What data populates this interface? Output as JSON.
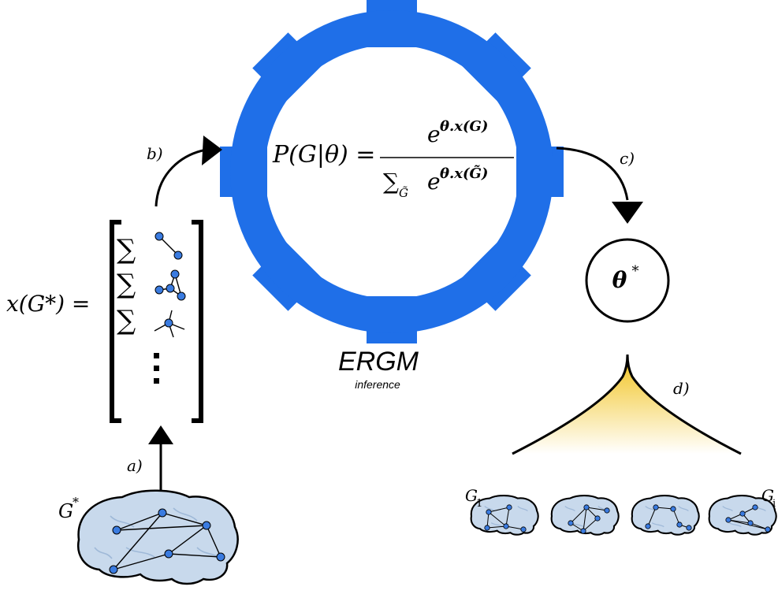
{
  "colors": {
    "gear": "#1f6fe8",
    "node": "#3a7be0",
    "brain_fill": "#c8d9ec",
    "brain_sulci": "#9fb9d8",
    "fan_top": "#f1c21b",
    "ink": "#000000"
  },
  "labels": {
    "step_a": "a)",
    "step_b": "b)",
    "step_c": "c)",
    "step_d": "d)"
  },
  "ergm": {
    "title": "ERGM",
    "subtitle": "inference",
    "formula_lhs": "P(G|θ) =",
    "formula_num_base": "e",
    "formula_num_exp": "θ.x(G)",
    "formula_den_sum": "∑",
    "formula_den_sub": "G̃",
    "formula_den_base": "e",
    "formula_den_exp": "θ.x(G̃)"
  },
  "stats_vector": {
    "lhs": "x(G*) =",
    "sum_symbol": "∑",
    "motifs": [
      "edge-motif-icon",
      "triangle-motif-icon",
      "star-motif-icon"
    ],
    "continuation": "⋮"
  },
  "theta_star": {
    "base": "θ",
    "sup": "*"
  },
  "observed_graph": {
    "base": "G",
    "sup": "*"
  },
  "samples": {
    "first": {
      "base": "G",
      "sub": "1"
    },
    "last": {
      "base": "G",
      "sub": "i"
    }
  }
}
